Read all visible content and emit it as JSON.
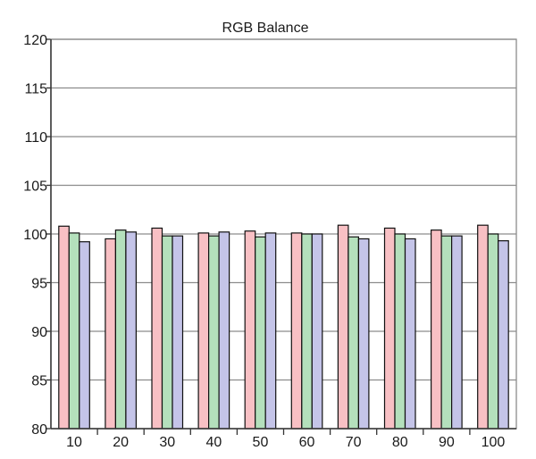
{
  "chart_data": {
    "type": "bar",
    "title": "RGB Balance",
    "xlabel": "",
    "ylabel": "",
    "categories": [
      "10",
      "20",
      "30",
      "40",
      "50",
      "60",
      "70",
      "80",
      "90",
      "100"
    ],
    "series": [
      {
        "values": [
          100.8,
          99.5,
          100.6,
          100.1,
          100.3,
          100.1,
          100.9,
          100.6,
          100.4,
          100.9
        ],
        "color": "#f8c0c4"
      },
      {
        "values": [
          100.1,
          100.4,
          99.8,
          99.8,
          99.7,
          100.0,
          99.7,
          100.0,
          99.8,
          100.0
        ],
        "color": "#b4e0bc"
      },
      {
        "values": [
          99.2,
          100.2,
          99.8,
          100.2,
          100.1,
          100.0,
          99.5,
          99.5,
          99.8,
          99.3
        ],
        "color": "#c4c4e8"
      }
    ],
    "ylim": [
      80,
      120
    ],
    "yticks": [
      80,
      85,
      90,
      95,
      100,
      105,
      110,
      115,
      120
    ],
    "grid": true,
    "legend": "none"
  }
}
